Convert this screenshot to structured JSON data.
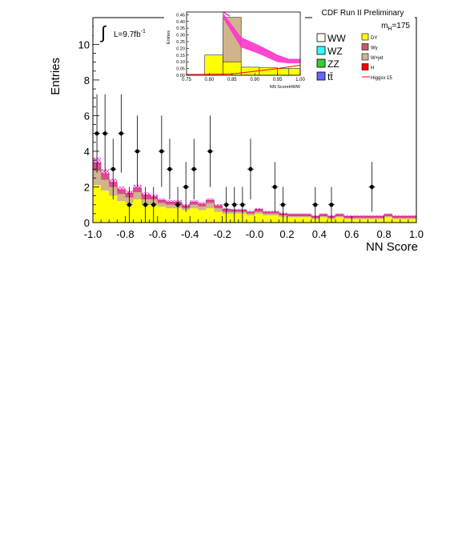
{
  "chart_data": {
    "type": "bar",
    "stacked": true,
    "xlabel": "NN Score",
    "ylabel": "Entries",
    "xlim": [
      -1.0,
      1.0
    ],
    "ylim": [
      0,
      11.5
    ],
    "xticks": [
      "-1.0",
      "-0.8",
      "-0.6",
      "-0.4",
      "-0.2",
      "-0.0",
      "0.2",
      "0.4",
      "0.6",
      "0.8",
      "1.0"
    ],
    "yticks": [
      "0",
      "2",
      "4",
      "6",
      "8",
      "10"
    ],
    "luminosity_label": "L=9.7fb",
    "luminosity_exp": "-1",
    "experiment_label": "CDF Run II Preliminary",
    "mass_label_main": "m",
    "mass_label_sub": "H",
    "mass_label_value": "=175",
    "bin_edges": [
      -1.0,
      -0.95,
      -0.9,
      -0.85,
      -0.8,
      -0.75,
      -0.7,
      -0.65,
      -0.6,
      -0.55,
      -0.5,
      -0.45,
      -0.4,
      -0.35,
      -0.3,
      -0.25,
      -0.2,
      -0.15,
      -0.1,
      -0.05,
      0.0,
      0.05,
      0.1,
      0.15,
      0.2,
      0.25,
      0.3,
      0.35,
      0.4,
      0.45,
      0.5,
      0.55,
      0.6,
      0.65,
      0.7,
      0.75,
      0.8,
      0.85,
      0.9,
      0.95,
      1.0
    ],
    "series": [
      {
        "name": "DY",
        "color": "#ffff00",
        "values": [
          2.1,
          1.8,
          1.5,
          1.2,
          1.1,
          1.3,
          1.0,
          1.0,
          0.9,
          0.8,
          0.8,
          0.7,
          0.8,
          0.7,
          0.8,
          0.6,
          0.5,
          0.5,
          0.5,
          0.4,
          0.5,
          0.4,
          0.4,
          0.3,
          0.3,
          0.3,
          0.3,
          0.2,
          0.3,
          0.2,
          0.3,
          0.2,
          0.2,
          0.2,
          0.2,
          0.2,
          0.3,
          0.2,
          0.2,
          0.2
        ]
      },
      {
        "name": "W+jet",
        "color": "#d2b48c",
        "values": [
          0.8,
          0.6,
          0.5,
          0.4,
          0.3,
          0.4,
          0.3,
          0.3,
          0.2,
          0.2,
          0.2,
          0.1,
          0.2,
          0.2,
          0.3,
          0.2,
          0.1,
          0.1,
          0.1,
          0.1,
          0.1,
          0.1,
          0.1,
          0.1,
          0.05,
          0.05,
          0.05,
          0.05,
          0.05,
          0.05,
          0.05,
          0.05,
          0.05,
          0.05,
          0.05,
          0.05,
          0.05,
          0.05,
          0.05,
          0.05
        ]
      },
      {
        "name": "Wγ",
        "color": "#c75b6a",
        "values": [
          0.4,
          0.3,
          0.2,
          0.2,
          0.2,
          0.2,
          0.2,
          0.1,
          0.1,
          0.1,
          0.1,
          0.1,
          0.1,
          0.1,
          0.1,
          0.1,
          0.1,
          0.05,
          0.05,
          0.05,
          0.1,
          0.05,
          0.05,
          0.05,
          0.05,
          0.05,
          0.05,
          0.05,
          0.05,
          0.05,
          0.05,
          0.05,
          0.05,
          0.05,
          0.05,
          0.05,
          0.05,
          0.05,
          0.05,
          0.05
        ]
      },
      {
        "name": "H",
        "color": "#ff0000",
        "values": [
          0.05,
          0.05,
          0.05,
          0.05,
          0.05,
          0.05,
          0.05,
          0.05,
          0.05,
          0.05,
          0.05,
          0.05,
          0.05,
          0.05,
          0.05,
          0.05,
          0.05,
          0.05,
          0.05,
          0.05,
          0.05,
          0.05,
          0.05,
          0.05,
          0.05,
          0.05,
          0.05,
          0.05,
          0.05,
          0.05,
          0.05,
          0.05,
          0.05,
          0.05,
          0.05,
          0.05,
          0.05,
          0.05,
          0.05,
          0.05
        ]
      }
    ],
    "uncertainty_band_color": "#ff33cc",
    "higgs_line_color": "#ff0000",
    "data_points": [
      {
        "x": -0.975,
        "y": 5,
        "err": 2.2
      },
      {
        "x": -0.925,
        "y": 5,
        "err": 2.2
      },
      {
        "x": -0.875,
        "y": 3,
        "err": 1.7
      },
      {
        "x": -0.825,
        "y": 5,
        "err": 2.2
      },
      {
        "x": -0.775,
        "y": 1,
        "err": 1.0
      },
      {
        "x": -0.725,
        "y": 4,
        "err": 2.0
      },
      {
        "x": -0.675,
        "y": 1,
        "err": 1.0
      },
      {
        "x": -0.625,
        "y": 1,
        "err": 1.0
      },
      {
        "x": -0.575,
        "y": 4,
        "err": 2.0
      },
      {
        "x": -0.525,
        "y": 3,
        "err": 1.7
      },
      {
        "x": -0.475,
        "y": 1,
        "err": 1.0
      },
      {
        "x": -0.425,
        "y": 2,
        "err": 1.4
      },
      {
        "x": -0.375,
        "y": 3,
        "err": 1.7
      },
      {
        "x": -0.275,
        "y": 4,
        "err": 2.0
      },
      {
        "x": -0.175,
        "y": 1,
        "err": 1.0
      },
      {
        "x": -0.125,
        "y": 1,
        "err": 1.0
      },
      {
        "x": -0.075,
        "y": 1,
        "err": 1.0
      },
      {
        "x": -0.025,
        "y": 3,
        "err": 1.7
      },
      {
        "x": 0.125,
        "y": 2,
        "err": 1.4
      },
      {
        "x": 0.175,
        "y": 1,
        "err": 1.0
      },
      {
        "x": 0.375,
        "y": 1,
        "err": 1.0
      },
      {
        "x": 0.475,
        "y": 1,
        "err": 1.0
      },
      {
        "x": 0.725,
        "y": 2,
        "err": 1.4
      }
    ],
    "legend": {
      "placement": "top-right",
      "left_column": [
        {
          "label": "WW",
          "color": "#ffffff"
        },
        {
          "label": "WZ",
          "color": "#33ffff"
        },
        {
          "label": "ZZ",
          "color": "#33cc33"
        },
        {
          "label": "tt̄",
          "color": "#6666ff"
        }
      ],
      "right_column": [
        {
          "label": "DY",
          "color": "#ffff00",
          "kind": "box"
        },
        {
          "label": "Wγ",
          "color": "#c75b6a",
          "kind": "box"
        },
        {
          "label": "W+jet",
          "color": "#d2b48c",
          "kind": "box"
        },
        {
          "label": "H",
          "color": "#ff0000",
          "kind": "box"
        },
        {
          "label": "Higgsx 15",
          "color": "#ff0000",
          "kind": "line"
        }
      ]
    },
    "inset": {
      "xlabel": "NN ScoreHWW",
      "ylabel": "Entries",
      "xlim": [
        0.75,
        1.0
      ],
      "ylim": [
        0,
        0.47
      ],
      "xticks": [
        "0.75",
        "0.80",
        "0.85",
        "0.90",
        "0.95",
        "1.00"
      ],
      "yticks": [
        "0.00",
        "0.05",
        "0.10",
        "0.15",
        "0.20",
        "0.25",
        "0.30",
        "0.35",
        "0.40",
        "0.45"
      ],
      "bin_edges": [
        0.75,
        0.79,
        0.83,
        0.87,
        0.91,
        0.95,
        0.975,
        1.0
      ],
      "dy_values": [
        0.0,
        0.15,
        0.1,
        0.06,
        0.055,
        0.05,
        0.05
      ],
      "wjet_values": [
        0.0,
        0.0,
        0.33,
        0.0,
        0.0,
        0.0,
        0.0
      ],
      "band_top": [
        {
          "x": 0.83,
          "y": 0.46
        },
        {
          "x": 0.87,
          "y": 0.28
        },
        {
          "x": 0.91,
          "y": 0.22
        },
        {
          "x": 0.95,
          "y": 0.15
        },
        {
          "x": 0.975,
          "y": 0.12
        },
        {
          "x": 1.0,
          "y": 0.12
        }
      ],
      "band_bottom": [
        {
          "x": 0.83,
          "y": 0.43
        },
        {
          "x": 0.87,
          "y": 0.21
        },
        {
          "x": 0.91,
          "y": 0.16
        },
        {
          "x": 0.95,
          "y": 0.1
        },
        {
          "x": 0.975,
          "y": 0.09
        },
        {
          "x": 1.0,
          "y": 0.09
        }
      ],
      "higgs_line": [
        {
          "x": 0.75,
          "y": 0.005
        },
        {
          "x": 0.85,
          "y": 0.01
        },
        {
          "x": 0.9,
          "y": 0.03
        },
        {
          "x": 0.95,
          "y": 0.05
        },
        {
          "x": 1.0,
          "y": 0.075
        }
      ]
    }
  }
}
